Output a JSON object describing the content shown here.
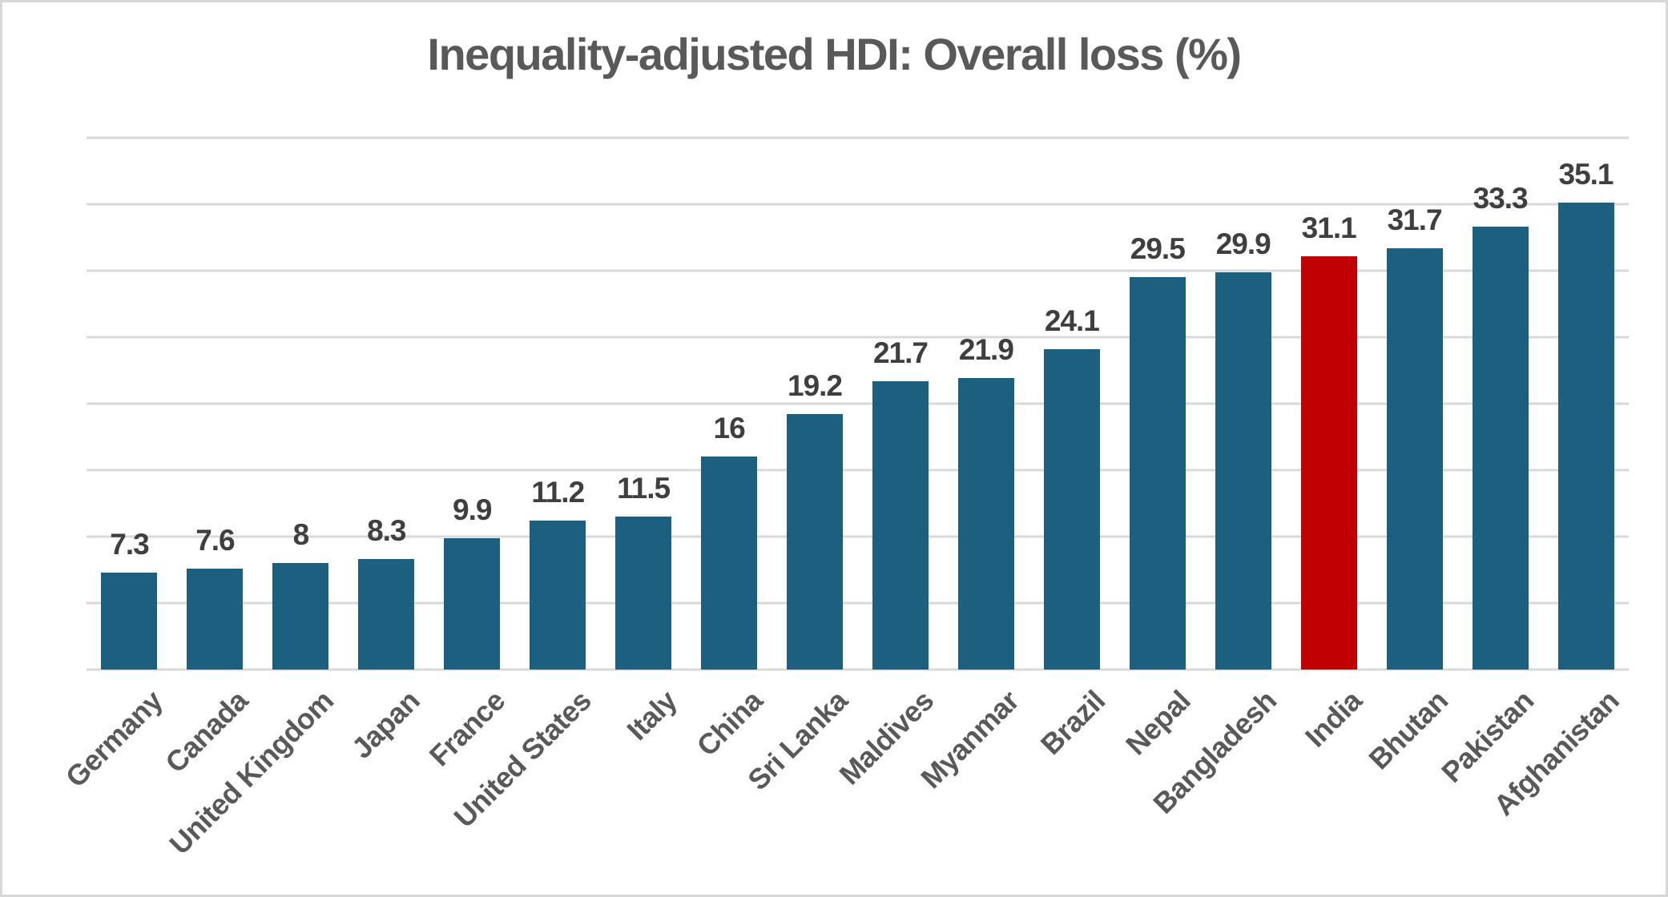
{
  "chart_data": {
    "type": "bar",
    "title": "Inequality-adjusted HDI: Overall loss (%)",
    "categories": [
      "Germany",
      "Canada",
      "United Kingdom",
      "Japan",
      "France",
      "United States",
      "Italy",
      "China",
      "Sri Lanka",
      "Maldives",
      "Myanmar",
      "Brazil",
      "Nepal",
      "Bangladesh",
      "India",
      "Bhutan",
      "Pakistan",
      "Afghanistan"
    ],
    "values": [
      7.3,
      7.6,
      8,
      8.3,
      9.9,
      11.2,
      11.5,
      16,
      19.2,
      21.7,
      21.9,
      24.1,
      29.5,
      29.9,
      31.1,
      31.7,
      33.3,
      35.1
    ],
    "data_labels_visible": true,
    "highlight_category": "India",
    "bar_color": "#1C5F7F",
    "highlight_color": "#C00000",
    "ylim": [
      0,
      40
    ],
    "gridline_step": 5,
    "grid": true,
    "y_axis_tick_labels_visible": false,
    "x_tick_rotation_deg": -45,
    "xlabel": "",
    "ylabel": "",
    "legend_position": "none"
  },
  "styles": {
    "title_color": "#595959",
    "value_label_color": "#3F3F3F",
    "axis_label_color": "#595959",
    "gridline_color": "#D9D9D9",
    "background": "#FFFFFF",
    "frame_border_color": "#D8D8D8"
  }
}
